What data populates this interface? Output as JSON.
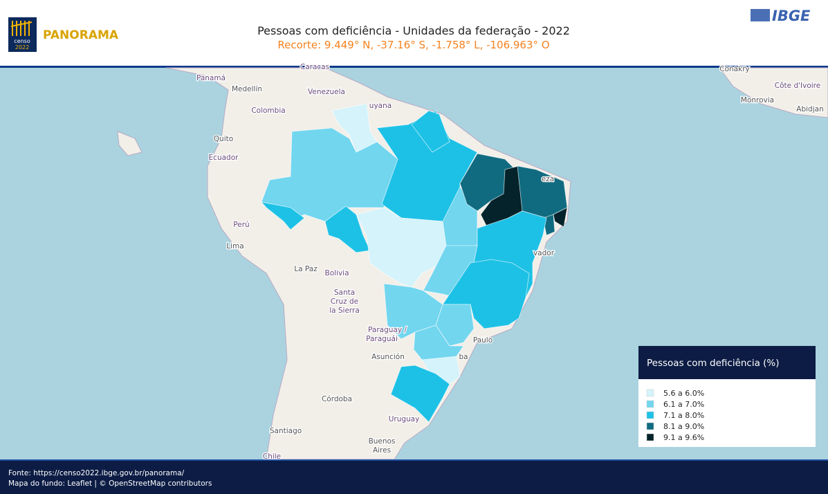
{
  "header": {
    "logo_text": "PANORAMA",
    "logo_sub": [
      "censo",
      "2022"
    ],
    "title": "Pessoas com deficiência - Unidades da federação - 2022",
    "subtitle": "Recorte: 9.449° N, -37.16° S, -1.758° L, -106.963° O",
    "brand": "IBGE"
  },
  "map": {
    "labels": [
      "Caracas",
      "Panamá",
      "Medellín",
      "Venezuela",
      "uyana",
      "Colombia",
      "Quito",
      "Ecuador",
      "Perú",
      "Lima",
      "La Paz",
      "Bolivia",
      "Santa",
      "Cruz de",
      "la Sierra",
      "Paraguay /",
      "Paraguái",
      "Asunción",
      "Córdoba",
      "Santiago",
      "Buenos",
      "Aires",
      "Uruguay",
      "Chile",
      "vador",
      "Paulo",
      "ba",
      "eza",
      "Conakry",
      "Côte d'Ivoire",
      "Monrovia",
      "Abidjan"
    ]
  },
  "legend": {
    "title": "Pessoas com deficiência (%)",
    "items": [
      {
        "label": "5.6 a 6.0%",
        "color": "#d4f3fa"
      },
      {
        "label": "6.1 a 7.0%",
        "color": "#72d6ef"
      },
      {
        "label": "7.1 a 8.0%",
        "color": "#1ec1e6"
      },
      {
        "label": "8.1 a 9.0%",
        "color": "#116b80"
      },
      {
        "label": "9.1 a 9.6%",
        "color": "#04232b"
      }
    ]
  },
  "footer": {
    "source": "Fonte: https://censo2022.ibge.gov.br/panorama/",
    "credits": "Mapa do fundo: Leaflet | © OpenStreetMap contributors"
  }
}
